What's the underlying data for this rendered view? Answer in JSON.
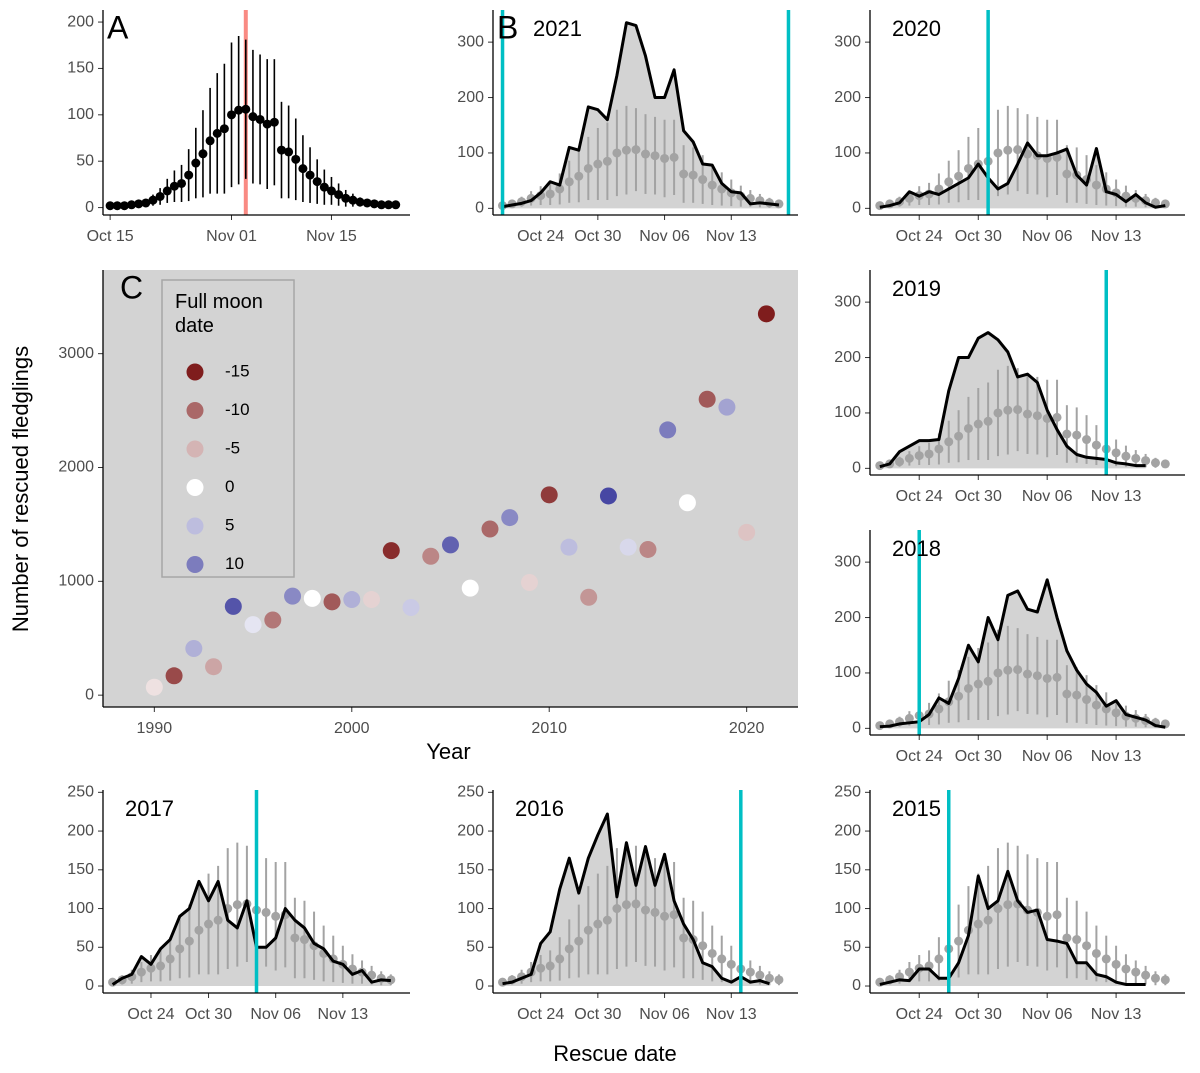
{
  "chart_data": [
    {
      "type": "errorbar",
      "label": "A",
      "x": [
        "Oct 15",
        "Oct 16",
        "Oct 17",
        "Oct 18",
        "Oct 19",
        "Oct 20",
        "Oct 21",
        "Oct 22",
        "Oct 23",
        "Oct 24",
        "Oct 25",
        "Oct 26",
        "Oct 27",
        "Oct 28",
        "Oct 29",
        "Oct 30",
        "Oct 31",
        "Nov 01",
        "Nov 02",
        "Nov 03",
        "Nov 04",
        "Nov 05",
        "Nov 06",
        "Nov 07",
        "Nov 08",
        "Nov 09",
        "Nov 10",
        "Nov 11",
        "Nov 12",
        "Nov 13",
        "Nov 14",
        "Nov 15",
        "Nov 16",
        "Nov 17",
        "Nov 18",
        "Nov 19",
        "Nov 20",
        "Nov 21",
        "Nov 22",
        "Nov 23",
        "Nov 24"
      ],
      "values": [
        2,
        2,
        2,
        3,
        4,
        5,
        8,
        12,
        18,
        23,
        26,
        35,
        48,
        58,
        72,
        80,
        85,
        100,
        105,
        106,
        98,
        95,
        90,
        92,
        62,
        60,
        52,
        42,
        35,
        28,
        22,
        18,
        14,
        10,
        8,
        6,
        5,
        4,
        3,
        3,
        3
      ],
      "errors": [
        1,
        1,
        1,
        2,
        3,
        4,
        6,
        9,
        13,
        17,
        20,
        28,
        38,
        47,
        57,
        65,
        70,
        78,
        80,
        75,
        72,
        70,
        70,
        68,
        52,
        50,
        44,
        36,
        30,
        24,
        19,
        15,
        12,
        9,
        7,
        5,
        4,
        3,
        2,
        2,
        2
      ],
      "color": "#000000",
      "vline": "Nov 03",
      "vline_color": "#f8766d",
      "xlim": [
        "Oct 14",
        "Nov 26"
      ],
      "xticks": [
        "Oct 15",
        "Nov 01",
        "Nov 15"
      ],
      "ylim": [
        -8,
        213
      ],
      "yticks": [
        0,
        50,
        100,
        150,
        200
      ]
    },
    {
      "type": "year",
      "label": "B",
      "title": "2021",
      "x": [
        "Oct 20",
        "Oct 21",
        "Oct 22",
        "Oct 23",
        "Oct 24",
        "Oct 25",
        "Oct 26",
        "Oct 27",
        "Oct 28",
        "Oct 29",
        "Oct 30",
        "Oct 31",
        "Nov 01",
        "Nov 02",
        "Nov 03",
        "Nov 04",
        "Nov 05",
        "Nov 06",
        "Nov 07",
        "Nov 08",
        "Nov 09",
        "Nov 10",
        "Nov 11",
        "Nov 12",
        "Nov 13",
        "Nov 14",
        "Nov 15",
        "Nov 16",
        "Nov 17",
        "Nov 18"
      ],
      "values": [
        3,
        6,
        9,
        14,
        28,
        48,
        42,
        110,
        105,
        183,
        178,
        160,
        240,
        335,
        330,
        275,
        200,
        200,
        250,
        140,
        120,
        80,
        78,
        45,
        30,
        28,
        8,
        10,
        8,
        6
      ],
      "color": "#000000",
      "fill": "#d3d3d3",
      "mean_color": "#a3a3a3",
      "full_moon": [
        "Oct 20",
        "Nov 19"
      ],
      "moon_color": "#00bfc4",
      "xlim": [
        "Oct 19",
        "Nov 20"
      ],
      "xticks": [
        "Oct 24",
        "Oct 30",
        "Nov 06",
        "Nov 13"
      ],
      "ylim": [
        -12,
        358
      ],
      "yticks": [
        0,
        100,
        200,
        300
      ]
    },
    {
      "type": "year",
      "title": "2020",
      "x": [
        "Oct 20",
        "Oct 21",
        "Oct 22",
        "Oct 23",
        "Oct 24",
        "Oct 25",
        "Oct 26",
        "Oct 27",
        "Oct 28",
        "Oct 29",
        "Oct 30",
        "Oct 31",
        "Nov 01",
        "Nov 02",
        "Nov 03",
        "Nov 04",
        "Nov 05",
        "Nov 06",
        "Nov 07",
        "Nov 08",
        "Nov 09",
        "Nov 10",
        "Nov 11",
        "Nov 12",
        "Nov 13",
        "Nov 14",
        "Nov 15",
        "Nov 16",
        "Nov 17",
        "Nov 18"
      ],
      "values": [
        2,
        5,
        10,
        30,
        22,
        30,
        25,
        35,
        45,
        55,
        80,
        55,
        35,
        45,
        80,
        118,
        95,
        95,
        100,
        107,
        60,
        42,
        108,
        30,
        25,
        12,
        25,
        10,
        2,
        5
      ],
      "color": "#000000",
      "fill": "#d3d3d3",
      "mean_color": "#a3a3a3",
      "full_moon": [
        "Oct 31"
      ],
      "moon_color": "#00bfc4",
      "xlim": [
        "Oct 19",
        "Nov 20"
      ],
      "xticks": [
        "Oct 24",
        "Oct 30",
        "Nov 06",
        "Nov 13"
      ],
      "ylim": [
        -12,
        358
      ],
      "yticks": [
        0,
        100,
        200,
        300
      ]
    },
    {
      "type": "year",
      "title": "2019",
      "x": [
        "Oct 20",
        "Oct 21",
        "Oct 22",
        "Oct 23",
        "Oct 24",
        "Oct 25",
        "Oct 26",
        "Oct 27",
        "Oct 28",
        "Oct 29",
        "Oct 30",
        "Oct 31",
        "Nov 01",
        "Nov 02",
        "Nov 03",
        "Nov 04",
        "Nov 05",
        "Nov 06",
        "Nov 07",
        "Nov 08",
        "Nov 09",
        "Nov 10",
        "Nov 11",
        "Nov 12",
        "Nov 13",
        "Nov 14",
        "Nov 15",
        "Nov 16",
        "Nov 17",
        "Nov 18"
      ],
      "values": [
        3,
        8,
        30,
        40,
        50,
        50,
        52,
        140,
        200,
        200,
        235,
        245,
        232,
        210,
        165,
        170,
        155,
        105,
        70,
        40,
        25,
        20,
        18,
        16,
        10,
        8,
        5,
        5,
        null,
        null
      ],
      "color": "#000000",
      "fill": "#d3d3d3",
      "mean_color": "#a3a3a3",
      "full_moon": [
        "Nov 12"
      ],
      "moon_color": "#00bfc4",
      "xlim": [
        "Oct 19",
        "Nov 20"
      ],
      "xticks": [
        "Oct 24",
        "Oct 30",
        "Nov 06",
        "Nov 13"
      ],
      "ylim": [
        -12,
        358
      ],
      "yticks": [
        0,
        100,
        200,
        300
      ]
    },
    {
      "type": "year",
      "title": "2018",
      "x": [
        "Oct 20",
        "Oct 21",
        "Oct 22",
        "Oct 23",
        "Oct 24",
        "Oct 25",
        "Oct 26",
        "Oct 27",
        "Oct 28",
        "Oct 29",
        "Oct 30",
        "Oct 31",
        "Nov 01",
        "Nov 02",
        "Nov 03",
        "Nov 04",
        "Nov 05",
        "Nov 06",
        "Nov 07",
        "Nov 08",
        "Nov 09",
        "Nov 10",
        "Nov 11",
        "Nov 12",
        "Nov 13",
        "Nov 14",
        "Nov 15",
        "Nov 16",
        "Nov 17",
        "Nov 18"
      ],
      "values": [
        3,
        4,
        8,
        10,
        12,
        25,
        55,
        45,
        90,
        150,
        120,
        200,
        160,
        240,
        248,
        215,
        210,
        268,
        200,
        140,
        105,
        80,
        65,
        40,
        50,
        25,
        20,
        15,
        5,
        2
      ],
      "color": "#000000",
      "fill": "#d3d3d3",
      "mean_color": "#a3a3a3",
      "full_moon": [
        "Oct 24"
      ],
      "moon_color": "#00bfc4",
      "xlim": [
        "Oct 19",
        "Nov 20"
      ],
      "xticks": [
        "Oct 24",
        "Oct 30",
        "Nov 06",
        "Nov 13"
      ],
      "ylim": [
        -12,
        358
      ],
      "yticks": [
        0,
        100,
        200,
        300
      ]
    },
    {
      "type": "year",
      "title": "2017",
      "x": [
        "Oct 20",
        "Oct 21",
        "Oct 22",
        "Oct 23",
        "Oct 24",
        "Oct 25",
        "Oct 26",
        "Oct 27",
        "Oct 28",
        "Oct 29",
        "Oct 30",
        "Oct 31",
        "Nov 01",
        "Nov 02",
        "Nov 03",
        "Nov 04",
        "Nov 05",
        "Nov 06",
        "Nov 07",
        "Nov 08",
        "Nov 09",
        "Nov 10",
        "Nov 11",
        "Nov 12",
        "Nov 13",
        "Nov 14",
        "Nov 15",
        "Nov 16",
        "Nov 17",
        "Nov 18"
      ],
      "values": [
        2,
        10,
        15,
        38,
        28,
        48,
        60,
        90,
        100,
        135,
        110,
        135,
        85,
        75,
        110,
        50,
        50,
        62,
        100,
        85,
        75,
        55,
        48,
        32,
        28,
        15,
        20,
        5,
        8,
        7
      ],
      "color": "#000000",
      "fill": "#d3d3d3",
      "mean_color": "#a3a3a3",
      "full_moon": [
        "Nov 04"
      ],
      "moon_color": "#00bfc4",
      "xlim": [
        "Oct 19",
        "Nov 20"
      ],
      "xticks": [
        "Oct 24",
        "Oct 30",
        "Nov 06",
        "Nov 13"
      ],
      "ylim": [
        -9,
        253
      ],
      "yticks": [
        0,
        50,
        100,
        150,
        200,
        250
      ]
    },
    {
      "type": "year",
      "title": "2016",
      "xlabel": "Rescue date",
      "x": [
        "Oct 20",
        "Oct 21",
        "Oct 22",
        "Oct 23",
        "Oct 24",
        "Oct 25",
        "Oct 26",
        "Oct 27",
        "Oct 28",
        "Oct 29",
        "Oct 30",
        "Oct 31",
        "Nov 01",
        "Nov 02",
        "Nov 03",
        "Nov 04",
        "Nov 05",
        "Nov 06",
        "Nov 07",
        "Nov 08",
        "Nov 09",
        "Nov 10",
        "Nov 11",
        "Nov 12",
        "Nov 13",
        "Nov 14",
        "Nov 15",
        "Nov 16",
        "Nov 17",
        "Nov 18"
      ],
      "values": [
        3,
        5,
        10,
        15,
        55,
        70,
        125,
        165,
        120,
        165,
        195,
        222,
        115,
        185,
        130,
        180,
        130,
        170,
        110,
        80,
        60,
        30,
        25,
        10,
        5,
        12,
        5,
        7,
        3,
        null
      ],
      "color": "#000000",
      "fill": "#d3d3d3",
      "mean_color": "#a3a3a3",
      "full_moon": [
        "Nov 14"
      ],
      "moon_color": "#00bfc4",
      "xlim": [
        "Oct 19",
        "Nov 20"
      ],
      "xticks": [
        "Oct 24",
        "Oct 30",
        "Nov 06",
        "Nov 13"
      ],
      "ylim": [
        -9,
        253
      ],
      "yticks": [
        0,
        50,
        100,
        150,
        200,
        250
      ]
    },
    {
      "type": "year",
      "title": "2015",
      "x": [
        "Oct 20",
        "Oct 21",
        "Oct 22",
        "Oct 23",
        "Oct 24",
        "Oct 25",
        "Oct 26",
        "Oct 27",
        "Oct 28",
        "Oct 29",
        "Oct 30",
        "Oct 31",
        "Nov 01",
        "Nov 02",
        "Nov 03",
        "Nov 04",
        "Nov 05",
        "Nov 06",
        "Nov 07",
        "Nov 08",
        "Nov 09",
        "Nov 10",
        "Nov 11",
        "Nov 12",
        "Nov 13",
        "Nov 14",
        "Nov 15",
        "Nov 16",
        "Nov 17",
        "Nov 18"
      ],
      "values": [
        2,
        5,
        8,
        7,
        22,
        22,
        10,
        10,
        30,
        65,
        142,
        100,
        110,
        148,
        110,
        95,
        98,
        60,
        58,
        55,
        30,
        30,
        15,
        12,
        5,
        2,
        2,
        2,
        null,
        null
      ],
      "color": "#000000",
      "fill": "#d3d3d3",
      "mean_color": "#a3a3a3",
      "full_moon": [
        "Oct 27"
      ],
      "moon_color": "#00bfc4",
      "xlim": [
        "Oct 19",
        "Nov 20"
      ],
      "xticks": [
        "Oct 24",
        "Oct 30",
        "Nov 06",
        "Nov 13"
      ],
      "ylim": [
        -9,
        253
      ],
      "yticks": [
        0,
        50,
        100,
        150,
        200,
        250
      ]
    },
    {
      "type": "scatter",
      "label": "C",
      "xlabel": "Year",
      "ylabel": "Number of rescued fledglings",
      "x": [
        1990,
        1991,
        1992,
        1993,
        1994,
        1995,
        1996,
        1997,
        1998,
        1999,
        2000,
        2001,
        2002,
        2003,
        2004,
        2005,
        2006,
        2007,
        2008,
        2009,
        2010,
        2011,
        2012,
        2013,
        2014,
        2015,
        2016,
        2017,
        2018,
        2019,
        2020,
        2021
      ],
      "values": [
        70,
        170,
        410,
        250,
        780,
        620,
        660,
        870,
        850,
        820,
        840,
        840,
        1270,
        770,
        1220,
        1320,
        940,
        1460,
        1560,
        990,
        1760,
        1300,
        860,
        1750,
        1300,
        1280,
        2330,
        1690,
        2600,
        2530,
        1430,
        3350
      ],
      "moon": [
        -2,
        -12,
        6,
        -6,
        13,
        2,
        -9,
        9,
        0,
        -11,
        6,
        -3,
        -14,
        4,
        -8,
        12,
        0,
        -10,
        9,
        -3,
        -13,
        5,
        -7,
        14,
        3,
        -8,
        10,
        0,
        -11,
        7,
        -4,
        -15
      ],
      "legend_title": "Full moon date",
      "legend_values": [
        -15,
        -10,
        -5,
        0,
        5,
        10
      ],
      "colorscale": {
        "low": "#7f1d1d",
        "mid": "#ffffff",
        "high": "#3a3a9c"
      },
      "background": "#d3d3d3",
      "xlim": [
        1987.4,
        2022.6
      ],
      "xticks": [
        1990,
        2000,
        2010,
        2020
      ],
      "ylim": [
        -104,
        3735
      ],
      "yticks": [
        0,
        1000,
        2000,
        3000
      ]
    }
  ]
}
